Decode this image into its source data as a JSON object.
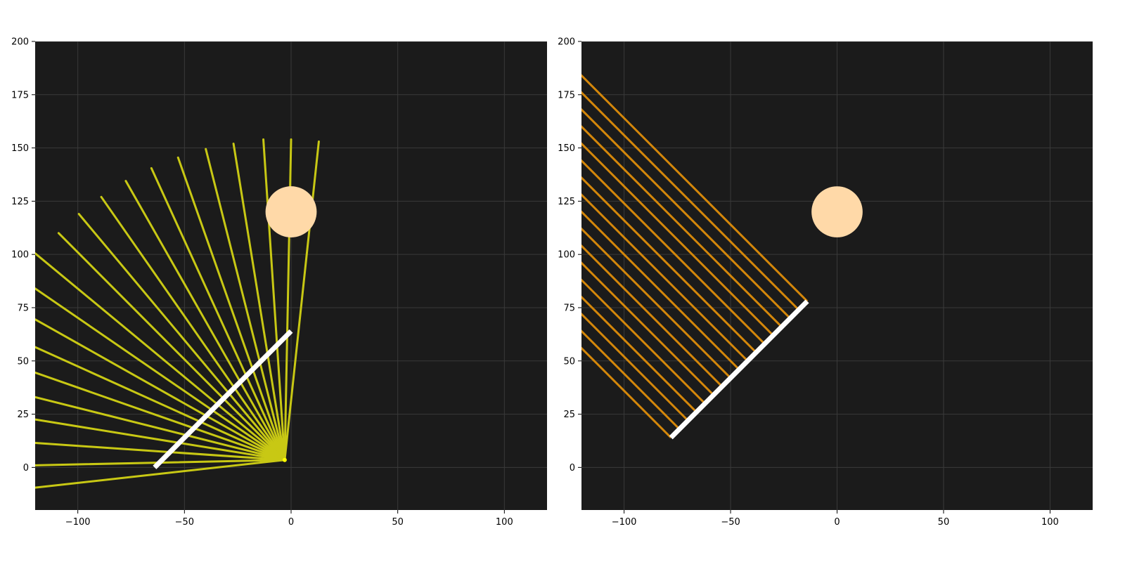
{
  "colors": {
    "background": "#1b1b1b",
    "grid": "#3a3a3a",
    "fan_rays": "#c8c814",
    "fan_focus": "#ffff00",
    "parallel_rays": "#d4870a",
    "mirror": "#ffffff",
    "sun": "#ffd9a8"
  },
  "chart_data": [
    {
      "type": "line",
      "panel": "left",
      "title": "",
      "xlabel": "",
      "ylabel": "",
      "xlim": [
        -120,
        120
      ],
      "ylim": [
        -20,
        200
      ],
      "grid": true,
      "x_ticks": [
        -100,
        -50,
        0,
        50,
        100
      ],
      "x_tick_labels": [
        "−100",
        "−50",
        "0",
        "50",
        "100"
      ],
      "y_ticks": [
        0,
        25,
        50,
        75,
        100,
        125,
        150,
        175,
        200
      ],
      "y_tick_labels": [
        "0",
        "25",
        "50",
        "75",
        "100",
        "125",
        "150",
        "175",
        "200"
      ],
      "circle": {
        "center": [
          0,
          120
        ],
        "radius": 12
      },
      "mirror": {
        "start": [
          -64,
          0
        ],
        "end": [
          0,
          64
        ]
      },
      "fan_origin": [
        -3,
        3.5
      ],
      "ray_ends": [
        [
          13,
          153
        ],
        [
          0,
          154
        ],
        [
          -13,
          154
        ],
        [
          -27,
          152
        ],
        [
          -40,
          149.5
        ],
        [
          -53,
          145.5
        ],
        [
          -65.5,
          140.5
        ],
        [
          -77.5,
          134.5
        ],
        [
          -89,
          127
        ],
        [
          -99.5,
          119
        ],
        [
          -109,
          110
        ],
        [
          -120,
          100.5
        ],
        [
          -120,
          84
        ],
        [
          -120,
          69.5
        ],
        [
          -120,
          56.5
        ],
        [
          -120,
          44.5
        ],
        [
          -120,
          33
        ],
        [
          -120,
          22.5
        ],
        [
          -120,
          11.5
        ],
        [
          -120,
          1
        ],
        [
          -120,
          -9.5
        ]
      ]
    },
    {
      "type": "line",
      "panel": "right",
      "title": "",
      "xlabel": "",
      "ylabel": "",
      "xlim": [
        -120,
        120
      ],
      "ylim": [
        -20,
        200
      ],
      "grid": true,
      "x_ticks": [
        -100,
        -50,
        0,
        50,
        100
      ],
      "x_tick_labels": [
        "−100",
        "−50",
        "0",
        "50",
        "100"
      ],
      "y_ticks": [
        0,
        25,
        50,
        75,
        100,
        125,
        150,
        175,
        200
      ],
      "y_tick_labels": [
        "0",
        "25",
        "50",
        "75",
        "100",
        "125",
        "150",
        "175",
        "200"
      ],
      "circle": {
        "center": [
          0,
          120
        ],
        "radius": 12
      },
      "mirror": {
        "start": [
          -78,
          14
        ],
        "end": [
          -14,
          78
        ]
      },
      "ray_direction": [
        -1,
        1
      ],
      "ray_starts": [
        [
          -78,
          14
        ],
        [
          -74,
          18
        ],
        [
          -70,
          22
        ],
        [
          -66,
          26
        ],
        [
          -62,
          30
        ],
        [
          -58,
          34
        ],
        [
          -54,
          38
        ],
        [
          -50,
          42
        ],
        [
          -46,
          46
        ],
        [
          -42,
          50
        ],
        [
          -38,
          54
        ],
        [
          -34,
          58
        ],
        [
          -30,
          62
        ],
        [
          -26,
          66
        ],
        [
          -22,
          70
        ],
        [
          -18,
          74
        ],
        [
          -14,
          78
        ]
      ]
    }
  ]
}
